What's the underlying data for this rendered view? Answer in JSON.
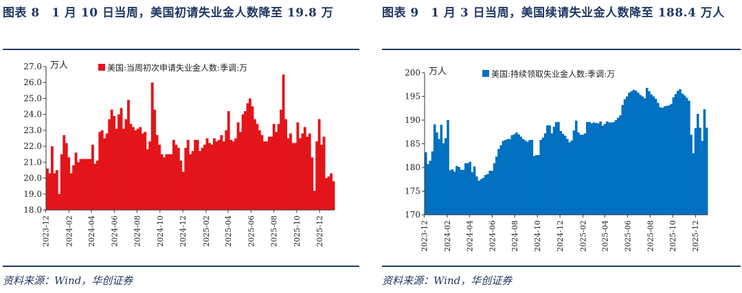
{
  "panels": [
    {
      "title": "图表 8　1 月 10 日当周，美国初请失业金人数降至 19.8 万",
      "unit": "万人",
      "source": "资料来源：Wind，华创证券",
      "color": "#e3151a"
    },
    {
      "title": "图表 9　1 月 3 日当周，美国续请失业金人数降至 188.4 万人",
      "unit": "万人",
      "source": "资料来源：Wind，华创证券",
      "color": "#0070c0"
    }
  ],
  "chart_data": [
    {
      "type": "bar",
      "legend": "美国:当周初次申请失业金人数:季调:万",
      "legend_position": "top",
      "ylabel": "万人",
      "ylim": [
        18.0,
        27.0
      ],
      "yticks": [
        "18.0",
        "19.0",
        "20.0",
        "21.0",
        "22.0",
        "23.0",
        "24.0",
        "25.0",
        "26.0",
        "27.0"
      ],
      "xticks": [
        "2023-12",
        "2024-02",
        "2024-04",
        "2024-06",
        "2024-08",
        "2024-10",
        "2024-12",
        "2025-02",
        "2025-04",
        "2025-06",
        "2025-08",
        "2025-10",
        "2025-12"
      ],
      "x_start": "2023-12-02",
      "x_end": "2026-01-10",
      "values": [
        20.6,
        20.3,
        22.0,
        20.3,
        20.5,
        19.0,
        21.5,
        22.7,
        22.2,
        21.3,
        20.3,
        20.8,
        21.6,
        21.0,
        21.2,
        21.2,
        21.2,
        21.2,
        21.2,
        22.1,
        20.9,
        21.1,
        22.9,
        23.0,
        22.5,
        22.8,
        23.7,
        24.3,
        23.9,
        23.1,
        24.0,
        24.4,
        23.1,
        23.7,
        24.9,
        23.4,
        23.2,
        23.0,
        23.1,
        23.2,
        22.8,
        22.9,
        21.8,
        22.3,
        26.0,
        24.3,
        22.7,
        22.1,
        21.5,
        21.3,
        21.5,
        21.5,
        21.5,
        22.4,
        22.1,
        21.9,
        21.1,
        20.4,
        21.9,
        22.4,
        21.5,
        21.7,
        22.4,
        22.4,
        21.7,
        21.9,
        22.1,
        22.5,
        22.2,
        22.1,
        22.5,
        22.3,
        22.4,
        22.7,
        22.3,
        23.0,
        24.2,
        22.4,
        22.3,
        22.5,
        23.5,
        22.9,
        24.0,
        24.2,
        24.7,
        25.0,
        24.5,
        23.7,
        23.4,
        23.0,
        22.7,
        22.3,
        22.3,
        22.6,
        22.6,
        23.4,
        22.9,
        23.4,
        24.3,
        26.5,
        23.7,
        22.5,
        22.8,
        22.2,
        22.2,
        23.5,
        22.5,
        22.8,
        23.2,
        22.6,
        22.8,
        21.3,
        19.2,
        22.3,
        23.7,
        22.1,
        22.6,
        20.0,
        20.1,
        20.3,
        19.8
      ]
    },
    {
      "type": "bar",
      "legend": "美国:持续领取失业金人数:季调:万",
      "legend_position": "top",
      "ylabel": "万人",
      "ylim": [
        170,
        200
      ],
      "yticks": [
        "170",
        "175",
        "180",
        "185",
        "190",
        "195",
        "200"
      ],
      "xticks": [
        "2023-12",
        "2024-02",
        "2024-04",
        "2024-06",
        "2024-08",
        "2024-10",
        "2024-12",
        "2025-02",
        "2025-04",
        "2025-06",
        "2025-08",
        "2025-10",
        "2025-12"
      ],
      "x_start": "2023-12-02",
      "x_end": "2026-01-03",
      "values": [
        183.2,
        180.7,
        181.4,
        183.4,
        189.1,
        187.4,
        186.0,
        189.0,
        185.1,
        186.2,
        190.0,
        179.4,
        179.6,
        179.1,
        180.3,
        180.1,
        179.5,
        179.5,
        180.9,
        180.9,
        181.2,
        179.0,
        180.2,
        178.1,
        177.2,
        177.5,
        177.8,
        178.4,
        178.6,
        179.3,
        179.3,
        180.9,
        182.3,
        183.9,
        184.7,
        185.6,
        185.8,
        186.0,
        186.0,
        186.8,
        187.0,
        187.4,
        187.0,
        186.5,
        186.0,
        185.7,
        185.4,
        185.8,
        185.8,
        182.4,
        182.6,
        182.6,
        185.8,
        186.3,
        187.2,
        188.9,
        188.9,
        187.2,
        188.6,
        189.6,
        189.6,
        187.7,
        187.1,
        186.7,
        186.0,
        185.3,
        185.7,
        187.8,
        189.9,
        187.4,
        186.9,
        186.9,
        187.2,
        189.6,
        189.6,
        189.3,
        189.5,
        189.4,
        189.3,
        189.7,
        188.8,
        189.2,
        189.7,
        189.5,
        189.5,
        189.6,
        190.0,
        190.5,
        191.0,
        193.2,
        194.4,
        195.0,
        195.8,
        196.1,
        196.4,
        196.2,
        195.8,
        195.3,
        195.0,
        194.6,
        196.8,
        196.1,
        195.4,
        195.0,
        194.5,
        193.6,
        192.7,
        192.6,
        192.9,
        193.0,
        193.1,
        193.4,
        194.8,
        195.5,
        196.2,
        196.5,
        195.6,
        195.2,
        194.7,
        194.1,
        186.9,
        183.0,
        188.3,
        191.3,
        188.4,
        185.6,
        192.3,
        188.4
      ]
    }
  ]
}
